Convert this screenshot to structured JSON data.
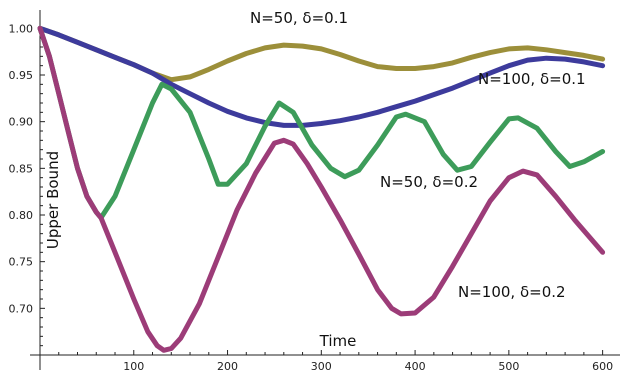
{
  "chart_data": {
    "type": "line",
    "xlabel": "Time",
    "ylabel": "Upper Bound",
    "xlim": [
      0,
      610
    ],
    "ylim": [
      0.65,
      1.01
    ],
    "xticks": [
      100,
      200,
      300,
      400,
      500,
      600
    ],
    "yticks": [
      0.7,
      0.75,
      0.8,
      0.85,
      0.9,
      0.95,
      1.0
    ],
    "grid": false,
    "legend": "inline",
    "series": [
      {
        "name": "N=50, δ=0.1",
        "color": "#9c8f3a",
        "x": [
          0,
          20,
          40,
          60,
          80,
          100,
          120,
          140,
          160,
          180,
          200,
          220,
          240,
          260,
          280,
          300,
          320,
          340,
          360,
          380,
          400,
          420,
          440,
          460,
          480,
          500,
          520,
          540,
          560,
          580,
          600
        ],
        "y": [
          1.0,
          0.993,
          0.985,
          0.977,
          0.969,
          0.961,
          0.952,
          0.945,
          0.948,
          0.956,
          0.965,
          0.973,
          0.979,
          0.982,
          0.981,
          0.978,
          0.972,
          0.965,
          0.959,
          0.957,
          0.957,
          0.959,
          0.963,
          0.969,
          0.974,
          0.978,
          0.979,
          0.977,
          0.974,
          0.971,
          0.967
        ]
      },
      {
        "name": "N=100, δ=0.1",
        "color": "#3d3b9c",
        "x": [
          0,
          20,
          40,
          60,
          80,
          100,
          120,
          140,
          160,
          180,
          200,
          220,
          240,
          260,
          280,
          300,
          320,
          340,
          360,
          380,
          400,
          420,
          440,
          460,
          480,
          500,
          520,
          540,
          560,
          580,
          600
        ],
        "y": [
          1.0,
          0.993,
          0.985,
          0.977,
          0.969,
          0.961,
          0.952,
          0.94,
          0.93,
          0.92,
          0.911,
          0.904,
          0.899,
          0.896,
          0.896,
          0.898,
          0.901,
          0.905,
          0.91,
          0.916,
          0.922,
          0.929,
          0.936,
          0.944,
          0.952,
          0.96,
          0.966,
          0.968,
          0.967,
          0.964,
          0.96
        ]
      },
      {
        "name": "N=50, δ=0.2",
        "color": "#3d9c5a",
        "x": [
          0,
          10,
          20,
          30,
          40,
          50,
          60,
          65,
          80,
          100,
          120,
          130,
          140,
          160,
          180,
          190,
          200,
          220,
          240,
          255,
          270,
          290,
          310,
          325,
          340,
          360,
          380,
          390,
          410,
          430,
          445,
          460,
          480,
          500,
          510,
          530,
          550,
          565,
          580,
          600
        ],
        "y": [
          1.0,
          0.97,
          0.93,
          0.89,
          0.85,
          0.82,
          0.803,
          0.797,
          0.82,
          0.87,
          0.92,
          0.94,
          0.935,
          0.91,
          0.86,
          0.833,
          0.833,
          0.855,
          0.895,
          0.92,
          0.91,
          0.875,
          0.85,
          0.841,
          0.848,
          0.875,
          0.905,
          0.908,
          0.9,
          0.865,
          0.848,
          0.852,
          0.878,
          0.903,
          0.904,
          0.893,
          0.868,
          0.852,
          0.857,
          0.868
        ]
      },
      {
        "name": "N=100, δ=0.2",
        "color": "#9c3c78",
        "x": [
          0,
          10,
          20,
          30,
          40,
          50,
          60,
          65,
          80,
          100,
          115,
          125,
          132,
          140,
          150,
          170,
          190,
          210,
          230,
          250,
          260,
          270,
          285,
          300,
          320,
          340,
          360,
          375,
          385,
          400,
          420,
          440,
          460,
          480,
          500,
          515,
          530,
          550,
          570,
          600
        ],
        "y": [
          1.0,
          0.97,
          0.93,
          0.89,
          0.85,
          0.82,
          0.803,
          0.797,
          0.76,
          0.71,
          0.675,
          0.66,
          0.655,
          0.657,
          0.668,
          0.705,
          0.755,
          0.805,
          0.845,
          0.877,
          0.88,
          0.876,
          0.855,
          0.83,
          0.795,
          0.758,
          0.72,
          0.7,
          0.694,
          0.695,
          0.712,
          0.745,
          0.78,
          0.815,
          0.84,
          0.847,
          0.843,
          0.82,
          0.795,
          0.76
        ]
      }
    ]
  }
}
